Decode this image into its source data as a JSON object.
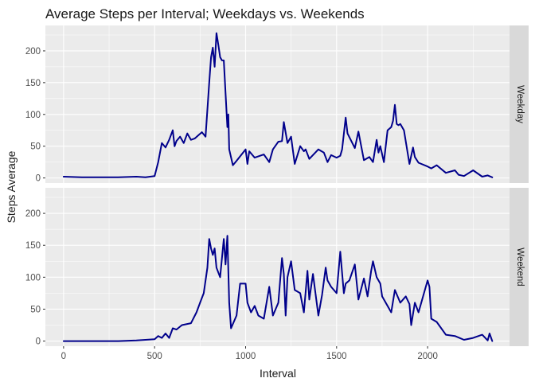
{
  "chart_data": {
    "type": "line",
    "title": "Average Steps per Interval; Weekdays vs. Weekends",
    "xlabel": "Interval",
    "ylabel": "Steps Average",
    "xlim": [
      -100,
      2450
    ],
    "ylim": [
      -8,
      240
    ],
    "xticks": [
      0,
      500,
      1000,
      1500,
      2000
    ],
    "yticks": [
      0,
      50,
      100,
      150,
      200
    ],
    "grid": true,
    "line_color": "#00008b",
    "panels": [
      {
        "label": "Weekday",
        "x": [
          0,
          100,
          200,
          300,
          400,
          450,
          500,
          520,
          540,
          560,
          580,
          600,
          610,
          620,
          640,
          660,
          680,
          700,
          720,
          740,
          760,
          780,
          800,
          810,
          820,
          830,
          840,
          850,
          860,
          870,
          880,
          900,
          905,
          910,
          930,
          950,
          1000,
          1010,
          1020,
          1050,
          1100,
          1130,
          1150,
          1180,
          1200,
          1210,
          1230,
          1250,
          1270,
          1300,
          1320,
          1330,
          1350,
          1400,
          1430,
          1450,
          1470,
          1500,
          1520,
          1530,
          1550,
          1560,
          1600,
          1620,
          1650,
          1680,
          1700,
          1720,
          1730,
          1740,
          1760,
          1780,
          1800,
          1810,
          1820,
          1830,
          1840,
          1850,
          1870,
          1900,
          1920,
          1930,
          1950,
          2000,
          2020,
          2050,
          2100,
          2150,
          2170,
          2200,
          2250,
          2300,
          2330,
          2355
        ],
        "y": [
          2,
          1,
          1,
          1,
          2,
          1,
          3,
          25,
          55,
          48,
          60,
          75,
          50,
          58,
          65,
          55,
          70,
          60,
          62,
          67,
          72,
          65,
          150,
          190,
          205,
          175,
          228,
          210,
          190,
          185,
          185,
          80,
          100,
          45,
          20,
          27,
          45,
          22,
          42,
          32,
          37,
          25,
          45,
          57,
          58,
          88,
          55,
          65,
          22,
          50,
          42,
          45,
          30,
          45,
          40,
          25,
          36,
          32,
          35,
          45,
          95,
          70,
          47,
          73,
          28,
          33,
          25,
          60,
          40,
          50,
          25,
          75,
          80,
          90,
          115,
          85,
          83,
          85,
          75,
          22,
          48,
          33,
          24,
          18,
          15,
          20,
          8,
          12,
          5,
          3,
          12,
          2,
          4,
          1
        ]
      },
      {
        "label": "Weekend",
        "x": [
          0,
          100,
          200,
          300,
          400,
          450,
          500,
          520,
          540,
          560,
          580,
          600,
          620,
          650,
          700,
          730,
          750,
          770,
          790,
          800,
          810,
          820,
          830,
          840,
          860,
          880,
          890,
          900,
          910,
          920,
          950,
          970,
          1000,
          1010,
          1030,
          1050,
          1070,
          1100,
          1130,
          1150,
          1180,
          1200,
          1210,
          1220,
          1230,
          1250,
          1270,
          1300,
          1320,
          1340,
          1350,
          1370,
          1400,
          1420,
          1440,
          1450,
          1470,
          1500,
          1520,
          1540,
          1550,
          1570,
          1600,
          1620,
          1650,
          1670,
          1690,
          1700,
          1720,
          1740,
          1750,
          1800,
          1820,
          1850,
          1880,
          1900,
          1910,
          1930,
          1950,
          2000,
          2010,
          2020,
          2050,
          2100,
          2150,
          2200,
          2250,
          2300,
          2330,
          2340,
          2355
        ],
        "y": [
          0,
          0,
          0,
          0,
          1,
          2,
          3,
          8,
          5,
          12,
          5,
          20,
          18,
          25,
          28,
          45,
          60,
          75,
          115,
          160,
          145,
          135,
          145,
          115,
          100,
          160,
          120,
          165,
          60,
          20,
          40,
          90,
          90,
          60,
          45,
          55,
          40,
          35,
          85,
          40,
          60,
          130,
          105,
          40,
          100,
          125,
          80,
          75,
          45,
          110,
          65,
          105,
          40,
          72,
          115,
          95,
          85,
          75,
          140,
          75,
          90,
          95,
          120,
          65,
          98,
          70,
          110,
          125,
          100,
          90,
          70,
          45,
          80,
          60,
          70,
          58,
          25,
          60,
          45,
          95,
          85,
          35,
          30,
          10,
          8,
          2,
          5,
          10,
          1,
          12,
          0
        ]
      }
    ]
  }
}
